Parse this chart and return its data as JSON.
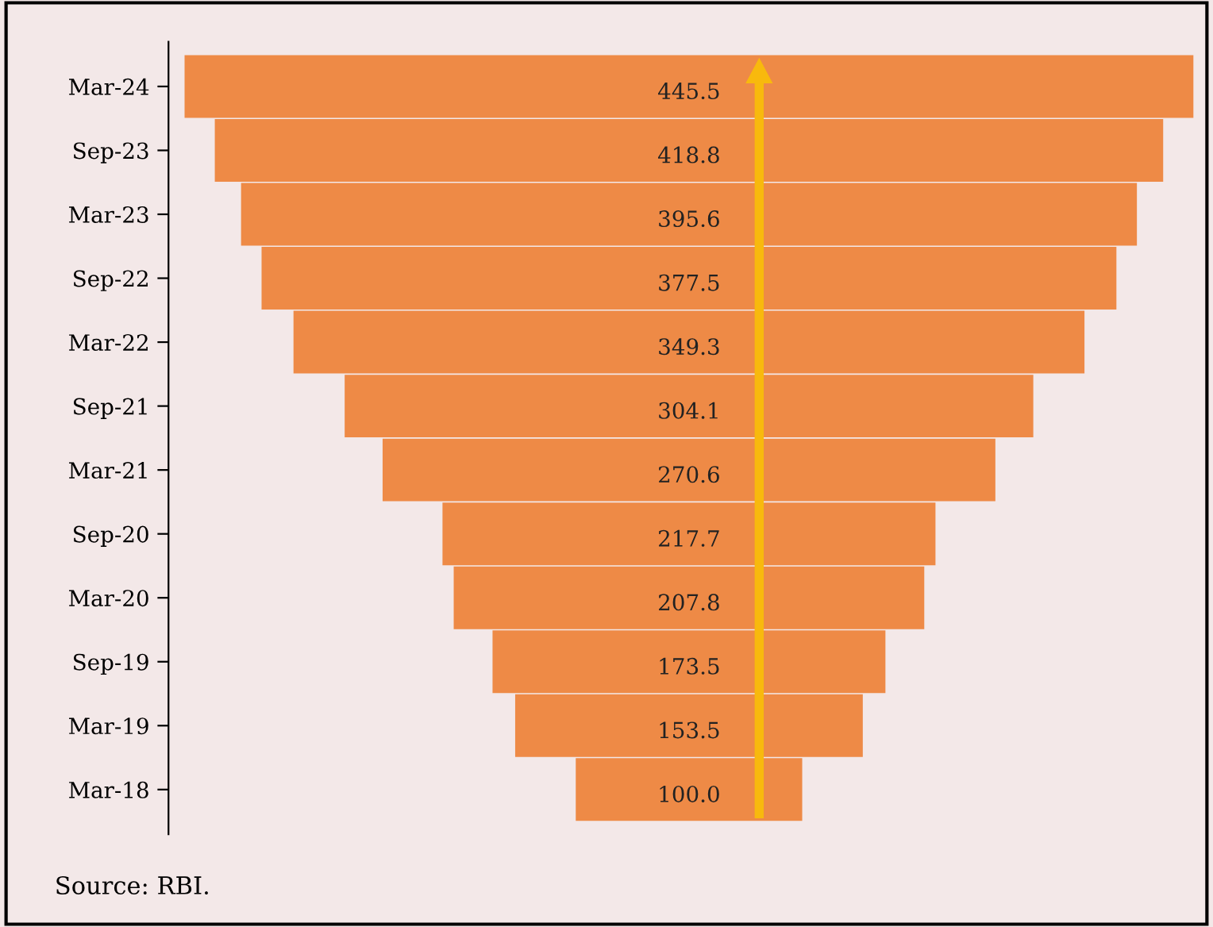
{
  "chart_data": {
    "type": "other",
    "categories": [
      "Mar-24",
      "Sep-23",
      "Mar-23",
      "Sep-22",
      "Mar-22",
      "Sep-21",
      "Mar-21",
      "Sep-20",
      "Mar-20",
      "Sep-19",
      "Mar-19",
      "Mar-18"
    ],
    "values": [
      445.5,
      418.8,
      395.6,
      377.5,
      349.3,
      304.1,
      270.6,
      217.7,
      207.8,
      173.5,
      153.5,
      100.0
    ],
    "value_labels": [
      "445.5",
      "418.8",
      "395.6",
      "377.5",
      "349.3",
      "304.1",
      "270.6",
      "217.7",
      "207.8",
      "173.5",
      "153.5",
      "100.0"
    ],
    "color": "#ee8a46",
    "annotations": [
      "Source: RBI."
    ]
  }
}
